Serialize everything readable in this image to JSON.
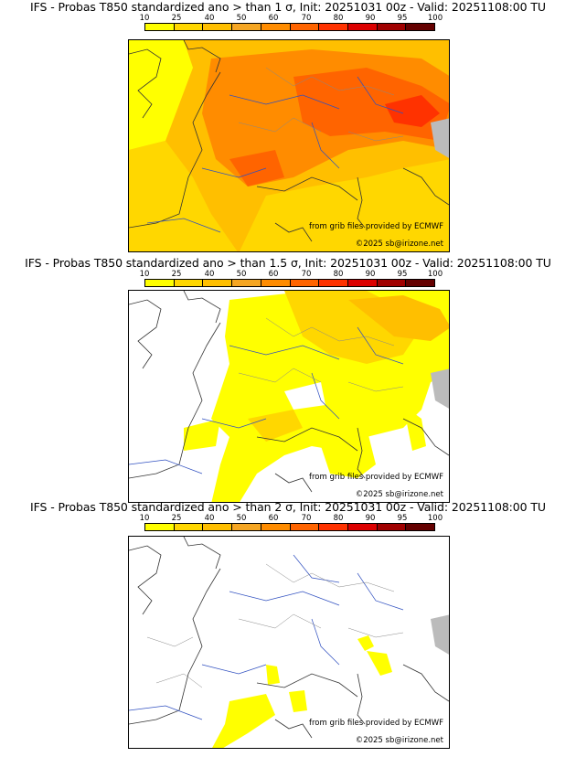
{
  "panels": [
    {
      "title": "IFS - Probas T850  standardized ano > than 1 σ, Init: 20251031 00z - Valid: 20251108:00 TU",
      "source": "from grib files provided by ECMWF",
      "copyright": "©2025 sb@irizone.net"
    },
    {
      "title": "IFS - Probas T850  standardized ano > than 1.5 σ, Init: 20251031 00z - Valid: 20251108:00 TU",
      "source": "from grib files provided by ECMWF",
      "copyright": "©2025 sb@irizone.net"
    },
    {
      "title": "IFS - Probas T850  standardized ano > than 2 σ, Init: 20251031 00z - Valid: 20251108:00 TU",
      "source": "from grib files provided by ECMWF",
      "copyright": "©2025 sb@irizone.net"
    }
  ],
  "colorbar": {
    "ticks": [
      "10",
      "25",
      "40",
      "50",
      "60",
      "70",
      "80",
      "90",
      "95",
      "100"
    ],
    "colors": [
      "#ffff00",
      "#ffd700",
      "#ffbf00",
      "#f5a623",
      "#ff8c00",
      "#ff6400",
      "#ff3200",
      "#dc0000",
      "#a00000",
      "#640000"
    ]
  }
}
